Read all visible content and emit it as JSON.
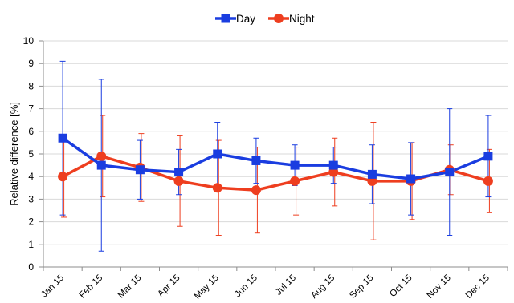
{
  "chart_data": {
    "type": "line",
    "title": "",
    "xlabel": "",
    "ylabel": "Relative difference [%]",
    "ylim": [
      0,
      10
    ],
    "yticks": [
      0,
      1,
      2,
      3,
      4,
      5,
      6,
      7,
      8,
      9,
      10
    ],
    "grid": true,
    "legend_position": "top-center",
    "categories": [
      "Jan 15",
      "Feb 15",
      "Mar 15",
      "Apr 15",
      "May 15",
      "Jun 15",
      "Jul 15",
      "Aug 15",
      "Sep 15",
      "Oct 15",
      "Nov 15",
      "Dec 15"
    ],
    "series": [
      {
        "name": "Day",
        "color": "#1a3de0",
        "marker": "square",
        "values": [
          5.7,
          4.5,
          4.3,
          4.2,
          5.0,
          4.7,
          4.5,
          4.5,
          4.1,
          3.9,
          4.2,
          4.9
        ],
        "error_low": [
          2.3,
          0.7,
          3.0,
          3.2,
          3.6,
          3.7,
          3.6,
          3.7,
          2.8,
          2.3,
          1.4,
          3.1
        ],
        "error_high": [
          9.1,
          8.3,
          5.6,
          5.2,
          6.4,
          5.7,
          5.4,
          5.3,
          5.4,
          5.5,
          7.0,
          6.7
        ]
      },
      {
        "name": "Night",
        "color": "#ee3e1f",
        "marker": "circle",
        "values": [
          4.0,
          4.9,
          4.4,
          3.8,
          3.5,
          3.4,
          3.8,
          4.2,
          3.8,
          3.8,
          4.3,
          3.8
        ],
        "error_low": [
          2.2,
          3.1,
          2.9,
          1.8,
          1.4,
          1.5,
          2.3,
          2.7,
          1.2,
          2.1,
          3.2,
          2.4
        ],
        "error_high": [
          5.8,
          6.7,
          5.9,
          5.8,
          5.6,
          5.3,
          5.3,
          5.7,
          6.4,
          5.5,
          5.4,
          5.2
        ]
      }
    ]
  }
}
